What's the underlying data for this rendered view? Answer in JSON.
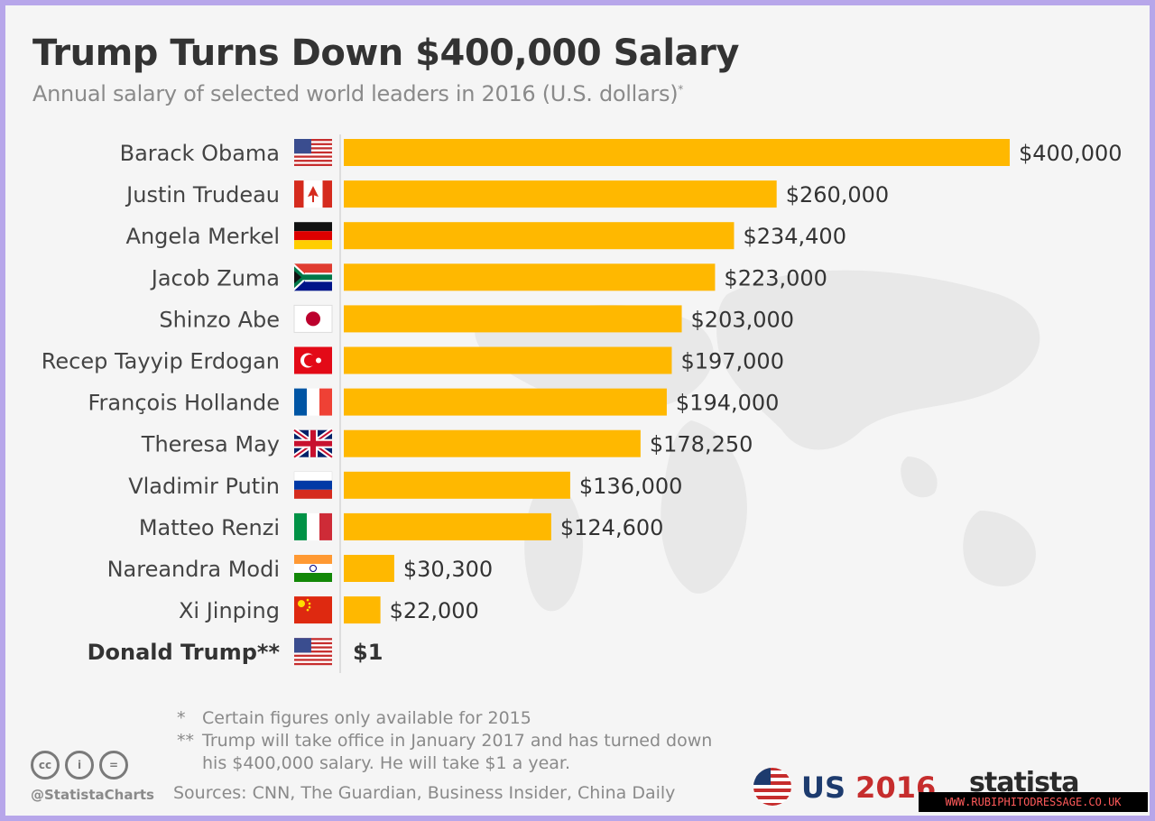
{
  "title": "Trump Turns Down $400,000 Salary",
  "subtitle": "Annual salary of selected world leaders in 2016 (U.S. dollars)",
  "subtitle_mark": "*",
  "chart_data": {
    "type": "bar",
    "orientation": "horizontal",
    "categories": [
      "Barack Obama",
      "Justin Trudeau",
      "Angela Merkel",
      "Jacob Zuma",
      "Shinzo Abe",
      "Recep Tayyip Erdogan",
      "François Hollande",
      "Theresa May",
      "Vladimir Putin",
      "Matteo Renzi",
      "Nareandra Modi",
      "Xi Jinping",
      "Donald Trump**"
    ],
    "values": [
      400000,
      260000,
      234400,
      223000,
      203000,
      197000,
      194000,
      178250,
      136000,
      124600,
      30300,
      22000,
      1
    ],
    "data_labels": [
      "$400,000",
      "$260,000",
      "$234,400",
      "$223,000",
      "$203,000",
      "$197,000",
      "$194,000",
      "$178,250",
      "$136,000",
      "$124,600",
      "$30,300",
      "$22,000",
      "$1"
    ],
    "flags": [
      "usa-flag-icon",
      "canada-flag-icon",
      "germany-flag-icon",
      "south-africa-flag-icon",
      "japan-flag-icon",
      "turkey-flag-icon",
      "france-flag-icon",
      "uk-flag-icon",
      "russia-flag-icon",
      "italy-flag-icon",
      "india-flag-icon",
      "china-flag-icon",
      "usa-flag-icon"
    ],
    "highlight_index": 12,
    "bar_color": "#ffb800",
    "xlim": [
      0,
      400000
    ],
    "grid": false,
    "legend": "none"
  },
  "notes": [
    {
      "mark": "*",
      "text": "Certain figures only available for 2015"
    },
    {
      "mark": "**",
      "text": "Trump will take office in January 2017 and has turned down"
    },
    {
      "mark": "",
      "text": "his $400,000 salary. He will take $1 a year."
    }
  ],
  "sources": "Sources: CNN, The Guardian, Business Insider, China Daily",
  "handle": "@StatistaCharts",
  "license_icons": [
    "cc-icon",
    "attribution-icon",
    "no-derivatives-icon"
  ],
  "license_icon_text": [
    "cc",
    "i",
    "="
  ],
  "brand": {
    "us": "US",
    "year": "2016",
    "statista": "statista"
  },
  "watermark": "WWW.RUBIPHITODRESSAGE.CO.UK",
  "colors": {
    "background": "#f5f5f5",
    "frame": "#b7a6ea",
    "bar": "#ffb800",
    "title": "#333333",
    "subtitle": "#8a8a8a"
  }
}
